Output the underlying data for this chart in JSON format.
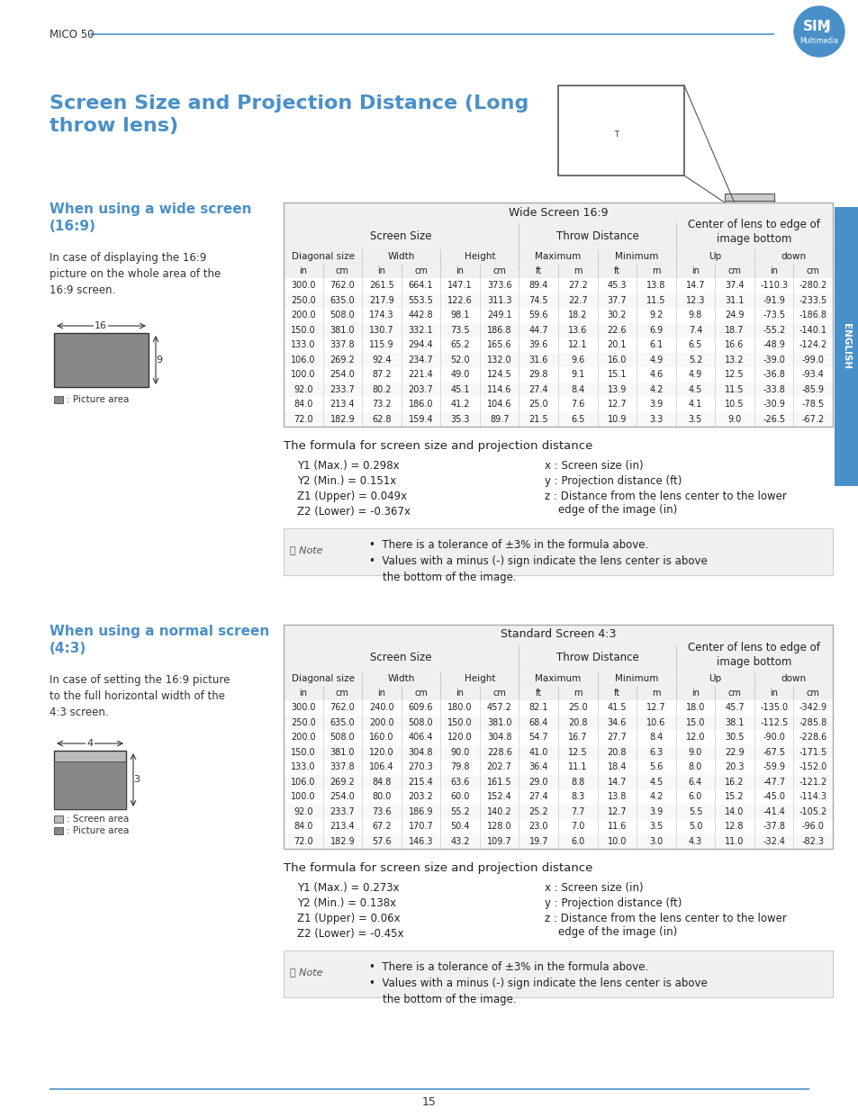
{
  "page_bg": "#ffffff",
  "header_text": "MICO 50",
  "header_line_color": "#4a90c8",
  "logo_colors": {
    "circle": "#4a90c8",
    "text": "#ffffff",
    "outline": "#4a90c8"
  },
  "title": "Screen Size and Projection Distance (Long\nthrow lens)",
  "title_color": "#4a90c8",
  "section1_heading": "When using a wide screen\n(16:9)",
  "section1_heading_color": "#4a90c8",
  "section1_desc": "In case of displaying the 16:9\npicture on the whole area of the\n16:9 screen.",
  "section2_heading": "When using a normal screen\n(4:3)",
  "section2_heading_color": "#4a90c8",
  "section2_desc": "In case of setting the 16:9 picture\nto the full horizontal width of the\n4:3 screen.",
  "english_tab_color": "#4a90c8",
  "table1_title": "Wide Screen 16:9",
  "table1_col_headers": [
    "Screen Size",
    "Throw Distance",
    "Center of lens to edge of\nimage bottom"
  ],
  "table1_sub_headers": [
    "Diagonal size",
    "Width",
    "Height",
    "Maximum",
    "Minimum",
    "Up",
    "down"
  ],
  "table1_units": [
    "in",
    "cm",
    "in",
    "cm",
    "in",
    "cm",
    "ft",
    "m",
    "ft",
    "m",
    "in",
    "cm",
    "in",
    "cm"
  ],
  "table1_data": [
    [
      300.0,
      762.0,
      261.5,
      664.1,
      147.1,
      373.6,
      89.4,
      27.2,
      45.3,
      13.8,
      14.7,
      37.4,
      -110.3,
      -280.2
    ],
    [
      250.0,
      635.0,
      217.9,
      553.5,
      122.6,
      311.3,
      74.5,
      22.7,
      37.7,
      11.5,
      12.3,
      31.1,
      -91.9,
      -233.5
    ],
    [
      200.0,
      508.0,
      174.3,
      442.8,
      98.1,
      249.1,
      59.6,
      18.2,
      30.2,
      9.2,
      9.8,
      24.9,
      -73.5,
      -186.8
    ],
    [
      150.0,
      381.0,
      130.7,
      332.1,
      73.5,
      186.8,
      44.7,
      13.6,
      22.6,
      6.9,
      7.4,
      18.7,
      -55.2,
      -140.1
    ],
    [
      133.0,
      337.8,
      115.9,
      294.4,
      65.2,
      165.6,
      39.6,
      12.1,
      20.1,
      6.1,
      6.5,
      16.6,
      -48.9,
      -124.2
    ],
    [
      106.0,
      269.2,
      92.4,
      234.7,
      52.0,
      132.0,
      31.6,
      9.6,
      16.0,
      4.9,
      5.2,
      13.2,
      -39.0,
      -99.0
    ],
    [
      100.0,
      254.0,
      87.2,
      221.4,
      49.0,
      124.5,
      29.8,
      9.1,
      15.1,
      4.6,
      4.9,
      12.5,
      -36.8,
      -93.4
    ],
    [
      92.0,
      233.7,
      80.2,
      203.7,
      45.1,
      114.6,
      27.4,
      8.4,
      13.9,
      4.2,
      4.5,
      11.5,
      -33.8,
      -85.9
    ],
    [
      84.0,
      213.4,
      73.2,
      186.0,
      41.2,
      104.6,
      25.0,
      7.6,
      12.7,
      3.9,
      4.1,
      10.5,
      -30.9,
      -78.5
    ],
    [
      72.0,
      182.9,
      62.8,
      159.4,
      35.3,
      89.7,
      21.5,
      6.5,
      10.9,
      3.3,
      3.5,
      9.0,
      -26.5,
      -67.2
    ]
  ],
  "formula1_title": "The formula for screen size and projection distance",
  "formula1_left": [
    "Y1 (Max.) = 0.298x",
    "Y2 (Min.) = 0.151x",
    "Z1 (Upper) = 0.049x",
    "Z2 (Lower) = -0.367x"
  ],
  "formula1_right": [
    "x : Screen size (in)",
    "y : Projection distance (ft)",
    "z : Distance from the lens center to the lower\n    edge of the image (in)"
  ],
  "note_text1": "•  There is a tolerance of ±3% in the formula above.\n•  Values with a minus (-) sign indicate the lens center is above\n    the bottom of the image.",
  "table2_title": "Standard Screen 4:3",
  "table2_col_headers": [
    "Screen Size",
    "Throw Distance",
    "Center of lens to edge of\nimage bottom"
  ],
  "table2_sub_headers": [
    "Diagonal size",
    "Width",
    "Height",
    "Maximum",
    "Minimum",
    "Up",
    "down"
  ],
  "table2_units": [
    "in",
    "cm",
    "in",
    "cm",
    "in",
    "cm",
    "ft",
    "m",
    "ft",
    "m",
    "in",
    "cm",
    "in",
    "cm"
  ],
  "table2_data": [
    [
      300.0,
      762.0,
      240.0,
      609.6,
      180.0,
      457.2,
      82.1,
      25.0,
      41.5,
      12.7,
      18.0,
      45.7,
      -135.0,
      -342.9
    ],
    [
      250.0,
      635.0,
      200.0,
      508.0,
      150.0,
      381.0,
      68.4,
      20.8,
      34.6,
      10.6,
      15.0,
      38.1,
      -112.5,
      -285.8
    ],
    [
      200.0,
      508.0,
      160.0,
      406.4,
      120.0,
      304.8,
      54.7,
      16.7,
      27.7,
      8.4,
      12.0,
      30.5,
      -90.0,
      -228.6
    ],
    [
      150.0,
      381.0,
      120.0,
      304.8,
      90.0,
      228.6,
      41.0,
      12.5,
      20.8,
      6.3,
      9.0,
      22.9,
      -67.5,
      -171.5
    ],
    [
      133.0,
      337.8,
      106.4,
      270.3,
      79.8,
      202.7,
      36.4,
      11.1,
      18.4,
      5.6,
      8.0,
      20.3,
      -59.9,
      -152.0
    ],
    [
      106.0,
      269.2,
      84.8,
      215.4,
      63.6,
      161.5,
      29.0,
      8.8,
      14.7,
      4.5,
      6.4,
      16.2,
      -47.7,
      -121.2
    ],
    [
      100.0,
      254.0,
      80.0,
      203.2,
      60.0,
      152.4,
      27.4,
      8.3,
      13.8,
      4.2,
      6.0,
      15.2,
      -45.0,
      -114.3
    ],
    [
      92.0,
      233.7,
      73.6,
      186.9,
      55.2,
      140.2,
      25.2,
      7.7,
      12.7,
      3.9,
      5.5,
      14.0,
      -41.4,
      -105.2
    ],
    [
      84.0,
      213.4,
      67.2,
      170.7,
      50.4,
      128.0,
      23.0,
      7.0,
      11.6,
      3.5,
      5.0,
      12.8,
      -37.8,
      -96.0
    ],
    [
      72.0,
      182.9,
      57.6,
      146.3,
      43.2,
      109.7,
      19.7,
      6.0,
      10.0,
      3.0,
      4.3,
      11.0,
      -32.4,
      -82.3
    ]
  ],
  "formula2_title": "The formula for screen size and projection distance",
  "formula2_left": [
    "Y1 (Max.) = 0.273x",
    "Y2 (Min.) = 0.138x",
    "Z1 (Upper) = 0.06x",
    "Z2 (Lower) = -0.45x"
  ],
  "formula2_right": [
    "x : Screen size (in)",
    "y : Projection distance (ft)",
    "z : Distance from the lens center to the lower\n    edge of the image (in)"
  ],
  "note_text2": "•  There is a tolerance of ±3% in the formula above.\n•  Values with a minus (-) sign indicate the lens center is above\n    the bottom of the image.",
  "footer_line_color": "#4a90c8",
  "footer_text": "15",
  "table_border_color": "#cccccc",
  "table_header_bg": "#f5f5f5",
  "note_bg": "#f0f0f0",
  "row_alt_bg": "#f8f8f8"
}
